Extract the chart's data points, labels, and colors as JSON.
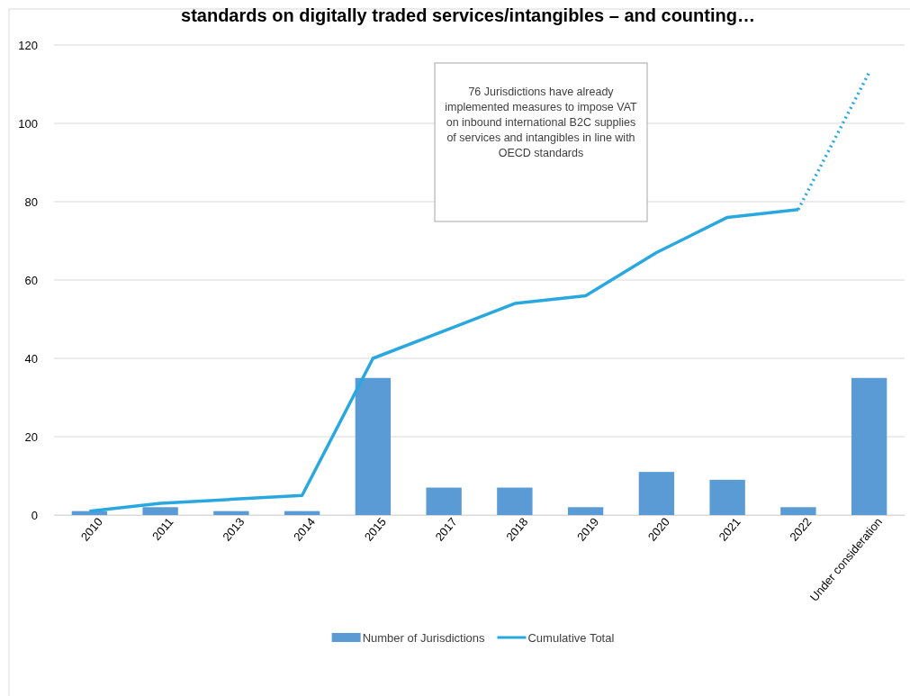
{
  "chart_data": {
    "type": "bar",
    "title": "standards on digitally traded services/intangibles – and counting…",
    "categories": [
      "2010",
      "2011",
      "2013",
      "2014",
      "2015",
      "2017",
      "2018",
      "2019",
      "2020",
      "2021",
      "2022",
      "Under consideration"
    ],
    "series": [
      {
        "name": "Number of Jurisdictions",
        "color": "#5b9bd5",
        "values": [
          1,
          2,
          1,
          1,
          35,
          7,
          7,
          2,
          11,
          9,
          2,
          35
        ]
      },
      {
        "name": "Cumulative Total",
        "type": "line",
        "color": "#29a8e0",
        "line_style": "solid",
        "values": [
          1,
          3,
          4,
          5,
          40,
          47,
          54,
          56,
          67,
          76,
          78,
          null
        ]
      },
      {
        "type": "line",
        "color": "#29a8e0",
        "line_style": "dotted",
        "values": [
          null,
          null,
          null,
          null,
          null,
          null,
          null,
          null,
          null,
          null,
          78,
          113
        ]
      }
    ],
    "ylim": [
      0,
      120
    ],
    "yticks": [
      0,
      20,
      40,
      60,
      80,
      100,
      120
    ],
    "grid": "y",
    "legend": "bottom",
    "marker": "none",
    "annotations": [
      "76 Jurisdictions have already implemented measures to impose VAT on inbound international B2C supplies of services and intangibles in line with OECD standards"
    ]
  }
}
